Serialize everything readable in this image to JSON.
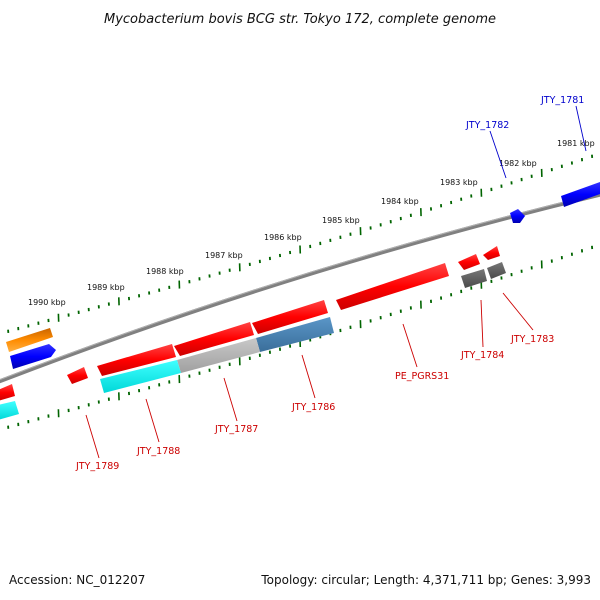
{
  "title": "Mycobacterium bovis BCG str. Tokyo 172, complete genome",
  "ticks": [
    {
      "label": "1981 kbp",
      "kbp": 1981
    },
    {
      "label": "1982 kbp",
      "kbp": 1982
    },
    {
      "label": "1983 kbp",
      "kbp": 1983
    },
    {
      "label": "1984 kbp",
      "kbp": 1984
    },
    {
      "label": "1985 kbp",
      "kbp": 1985
    },
    {
      "label": "1986 kbp",
      "kbp": 1986
    },
    {
      "label": "1987 kbp",
      "kbp": 1987
    },
    {
      "label": "1988 kbp",
      "kbp": 1988
    },
    {
      "label": "1989 kbp",
      "kbp": 1989
    },
    {
      "label": "1990 kbp",
      "kbp": 1990
    }
  ],
  "genes": [
    {
      "label": "JTY_1781",
      "color": "#0000cc"
    },
    {
      "label": "JTY_1782",
      "color": "#0000cc"
    },
    {
      "label": "JTY_1783",
      "color": "#cc0000"
    },
    {
      "label": "JTY_1784",
      "color": "#cc0000"
    },
    {
      "label": "PE_PGRS31",
      "color": "#cc0000"
    },
    {
      "label": "JTY_1786",
      "color": "#cc0000"
    },
    {
      "label": "JTY_1787",
      "color": "#cc0000"
    },
    {
      "label": "JTY_1788",
      "color": "#cc0000"
    },
    {
      "label": "JTY_1789",
      "color": "#cc0000"
    }
  ],
  "colors": {
    "forward_cds": "#0000ff",
    "reverse_cds": "#ff0000",
    "rrna_like": "#ff8c00",
    "cog_cyan": "#00ffff",
    "cog_grey": "#b3b3b3",
    "cog_steelblue": "#4682b4",
    "pseudo_grey": "#666666",
    "backbone": "#808080",
    "tick_green": "#006400"
  },
  "footer": {
    "accession": "Accession: NC_012207",
    "summary": "Topology: circular; Length: 4,371,711 bp; Genes: 3,993"
  }
}
